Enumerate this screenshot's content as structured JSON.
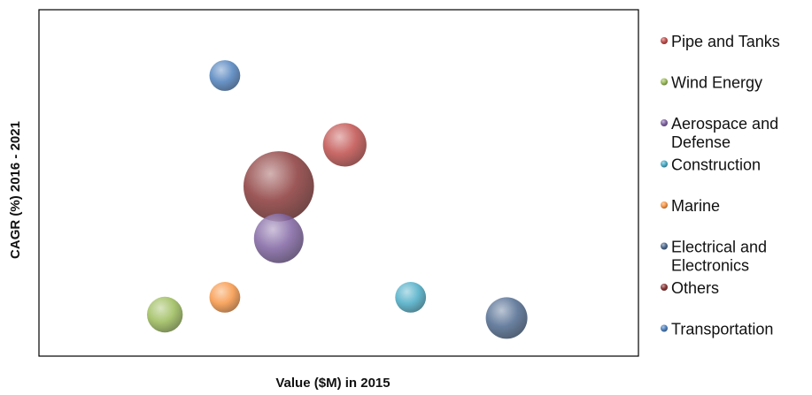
{
  "chart_data": {
    "type": "bubble",
    "title": "",
    "xlabel": "Value ($M) in 2015",
    "ylabel": "CAGR (%) 2016 - 2021",
    "grid": false,
    "legend_position": "right",
    "series": [
      {
        "name": "Pipe and Tanks",
        "x": 0.51,
        "y": 0.61,
        "size": 0.44,
        "color": "#c0504d"
      },
      {
        "name": "Wind Energy",
        "x": 0.21,
        "y": 0.12,
        "size": 0.36,
        "color": "#9bbb59"
      },
      {
        "name": "Aerospace and Defense",
        "x": 0.4,
        "y": 0.34,
        "size": 0.5,
        "color": "#8064a2"
      },
      {
        "name": "Construction",
        "x": 0.62,
        "y": 0.17,
        "size": 0.31,
        "color": "#4bacc6"
      },
      {
        "name": "Marine",
        "x": 0.31,
        "y": 0.17,
        "size": 0.31,
        "color": "#f79646"
      },
      {
        "name": "Electrical and Electronics",
        "x": 0.78,
        "y": 0.11,
        "size": 0.42,
        "color": "#4f6a8f"
      },
      {
        "name": "Others",
        "x": 0.4,
        "y": 0.49,
        "size": 0.71,
        "color": "#8b3a3a"
      },
      {
        "name": "Transportation",
        "x": 0.31,
        "y": 0.81,
        "size": 0.31,
        "color": "#4f81bd"
      }
    ],
    "legend_labels": [
      [
        "Pipe and Tanks"
      ],
      [
        "Wind Energy"
      ],
      [
        "Aerospace and",
        "Defense"
      ],
      [
        "Construction"
      ],
      [
        "Marine"
      ],
      [
        "Electrical and",
        "Electronics"
      ],
      [
        "Others"
      ],
      [
        "Transportation"
      ]
    ]
  }
}
